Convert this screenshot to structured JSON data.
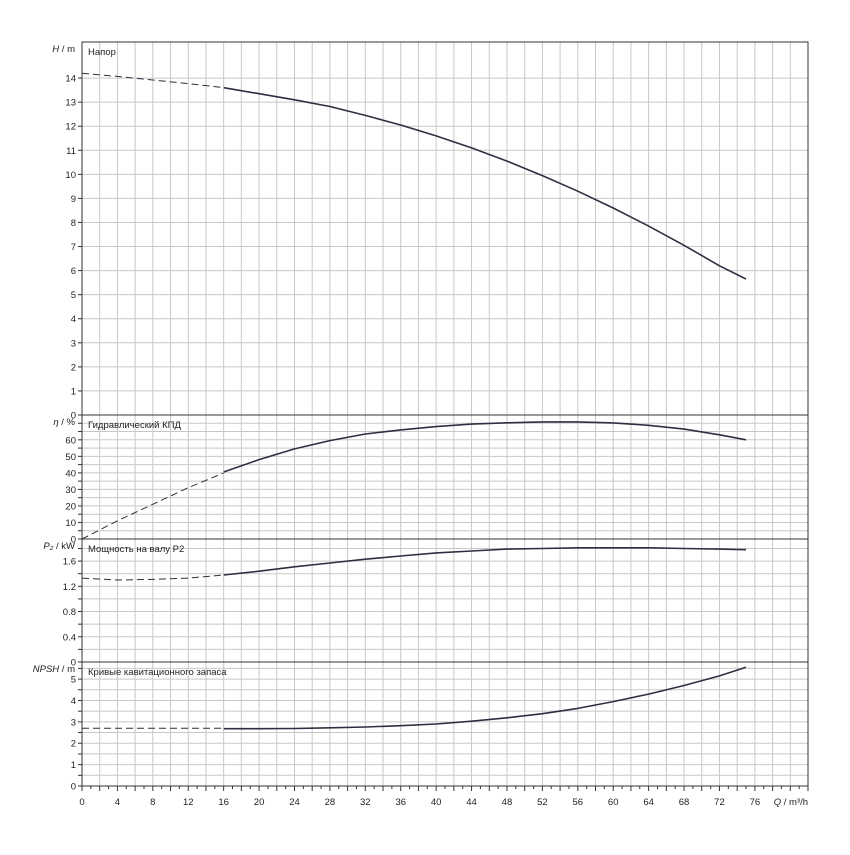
{
  "colors": {
    "grid": "#c8c8c8",
    "frame": "#333333",
    "curve": "#2b3140",
    "text": "#222222"
  },
  "chart_data": {
    "type": "line",
    "grid": true,
    "x_axis": {
      "label": "Q / m³/h",
      "range": [
        0,
        82
      ],
      "ticks": [
        0,
        4,
        8,
        12,
        16,
        20,
        24,
        28,
        32,
        36,
        40,
        44,
        48,
        52,
        56,
        60,
        64,
        68,
        72,
        76
      ]
    },
    "panels": [
      {
        "id": "head",
        "title": "Напор",
        "ylabel": "H / m",
        "ylim": [
          0,
          15.5
        ],
        "yticks": [
          0,
          1,
          2,
          3,
          4,
          5,
          6,
          7,
          8,
          9,
          10,
          11,
          12,
          13,
          14
        ],
        "ytick_labels": [
          "0",
          "1",
          "2",
          "3",
          "4",
          "5",
          "6",
          "7",
          "8",
          "9",
          "10",
          "11",
          "12",
          "13",
          "14"
        ],
        "series": [
          {
            "style": "dashed",
            "x": [
              0,
              4,
              8,
              12,
              16
            ],
            "y": [
              14.2,
              14.07,
              13.92,
              13.77,
              13.6
            ]
          },
          {
            "style": "solid",
            "x": [
              16,
              20,
              24,
              28,
              32,
              36,
              40,
              44,
              48,
              52,
              56,
              60,
              64,
              68,
              72,
              75
            ],
            "y": [
              13.6,
              13.35,
              13.1,
              12.82,
              12.45,
              12.05,
              11.6,
              11.1,
              10.55,
              9.95,
              9.3,
              8.6,
              7.85,
              7.05,
              6.2,
              5.65
            ]
          }
        ]
      },
      {
        "id": "efficiency",
        "title": "Гидравлический КПД",
        "ylabel": "η / %",
        "ylim": [
          0,
          75
        ],
        "yticks": [
          0,
          5,
          10,
          15,
          20,
          25,
          30,
          35,
          40,
          45,
          50,
          55,
          60,
          65,
          70
        ],
        "ytick_labels": [
          "0",
          "",
          "10",
          "",
          "20",
          "",
          "30",
          "",
          "40",
          "",
          "50",
          "",
          "60",
          "",
          ""
        ],
        "series": [
          {
            "style": "dashed",
            "x": [
              0,
              4,
              8,
              12,
              16
            ],
            "y": [
              0,
              11,
              21,
              31,
              40
            ]
          },
          {
            "style": "solid",
            "x": [
              16,
              20,
              24,
              28,
              32,
              36,
              40,
              44,
              48,
              52,
              56,
              60,
              64,
              68,
              72,
              75
            ],
            "y": [
              40.5,
              48,
              54.5,
              59.5,
              63.5,
              66,
              68,
              69.5,
              70.3,
              70.8,
              70.8,
              70.2,
              68.8,
              66.5,
              63,
              60
            ]
          }
        ]
      },
      {
        "id": "power",
        "title": "Мощность на валу P2",
        "ylabel": "P₂ / kW",
        "ylim": [
          0,
          1.95
        ],
        "yticks": [
          0,
          0.2,
          0.4,
          0.6,
          0.8,
          1.0,
          1.2,
          1.4,
          1.6,
          1.8
        ],
        "ytick_labels": [
          "0",
          "",
          "0.4",
          "",
          "0.8",
          "",
          "1.2",
          "",
          "1.6",
          ""
        ],
        "series": [
          {
            "style": "dashed",
            "x": [
              0,
              4,
              8,
              12,
              16
            ],
            "y": [
              1.33,
              1.3,
              1.31,
              1.33,
              1.38
            ]
          },
          {
            "style": "solid",
            "x": [
              16,
              20,
              24,
              28,
              32,
              36,
              40,
              44,
              48,
              52,
              56,
              60,
              64,
              68,
              72,
              75
            ],
            "y": [
              1.38,
              1.44,
              1.51,
              1.57,
              1.63,
              1.68,
              1.73,
              1.76,
              1.79,
              1.8,
              1.81,
              1.81,
              1.81,
              1.8,
              1.79,
              1.78
            ]
          }
        ]
      },
      {
        "id": "npsh",
        "title": "Кривые кавитационного запаса",
        "ylabel": "NPSH / m",
        "ylim": [
          0,
          5.8
        ],
        "yticks": [
          0,
          0.5,
          1,
          1.5,
          2,
          2.5,
          3,
          3.5,
          4,
          4.5,
          5,
          5.5
        ],
        "ytick_labels": [
          "0",
          "",
          "1",
          "",
          "2",
          "",
          "3",
          "",
          "4",
          "",
          "5",
          ""
        ],
        "series": [
          {
            "style": "dashed",
            "x": [
              0,
              16
            ],
            "y": [
              2.7,
              2.7
            ]
          },
          {
            "style": "solid",
            "x": [
              16,
              20,
              24,
              28,
              32,
              36,
              40,
              44,
              48,
              52,
              56,
              60,
              64,
              68,
              72,
              75
            ],
            "y": [
              2.68,
              2.68,
              2.69,
              2.72,
              2.76,
              2.82,
              2.9,
              3.03,
              3.19,
              3.38,
              3.63,
              3.95,
              4.3,
              4.7,
              5.15,
              5.55
            ]
          }
        ]
      }
    ]
  }
}
